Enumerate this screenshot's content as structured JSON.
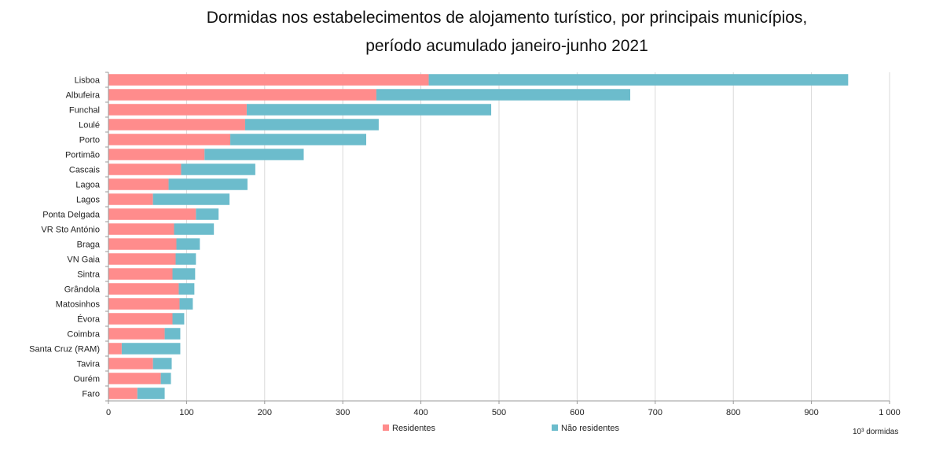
{
  "title_line1": "Dormidas nos estabelecimentos de alojamento turístico, por principais municípios,",
  "title_line2": "período acumulado janeiro-junho 2021",
  "unit_label": "10³ dormidas",
  "colors": {
    "residentes": "#ff8c8c",
    "nao_residentes": "#6cbccc",
    "grid": "#d9d9d9",
    "axis": "#999999"
  },
  "chart_data": {
    "type": "bar",
    "orientation": "horizontal",
    "stacked": true,
    "title": "Dormidas nos estabelecimentos de alojamento turístico, por principais municípios, período acumulado janeiro-junho 2021",
    "xlabel": "10³ dormidas",
    "ylabel": "",
    "xlim": [
      0,
      1000
    ],
    "xticks": [
      0,
      100,
      200,
      300,
      400,
      500,
      600,
      700,
      800,
      900,
      1000
    ],
    "xtick_labels": [
      "0",
      "100",
      "200",
      "300",
      "400",
      "500",
      "600",
      "700",
      "800",
      "900",
      "1 000"
    ],
    "grid": true,
    "legend_position": "bottom",
    "categories": [
      "Lisboa",
      "Albufeira",
      "Funchal",
      "Loulé",
      "Porto",
      "Portimão",
      "Cascais",
      "Lagoa",
      "Lagos",
      "Ponta Delgada",
      "VR Sto António",
      "Braga",
      "VN Gaia",
      "Sintra",
      "Grândola",
      "Matosinhos",
      "Évora",
      "Coimbra",
      "Santa Cruz (RAM)",
      "Tavira",
      "Ourém",
      "Faro"
    ],
    "series": [
      {
        "name": "Residentes",
        "values": [
          410,
          343,
          177,
          175,
          156,
          123,
          93,
          77,
          57,
          112,
          84,
          87,
          86,
          82,
          90,
          91,
          82,
          72,
          17,
          57,
          67,
          37
        ]
      },
      {
        "name": "Não residentes",
        "values": [
          537,
          325,
          313,
          171,
          174,
          127,
          95,
          101,
          98,
          29,
          51,
          30,
          26,
          29,
          20,
          17,
          15,
          20,
          75,
          24,
          13,
          35
        ]
      }
    ]
  }
}
